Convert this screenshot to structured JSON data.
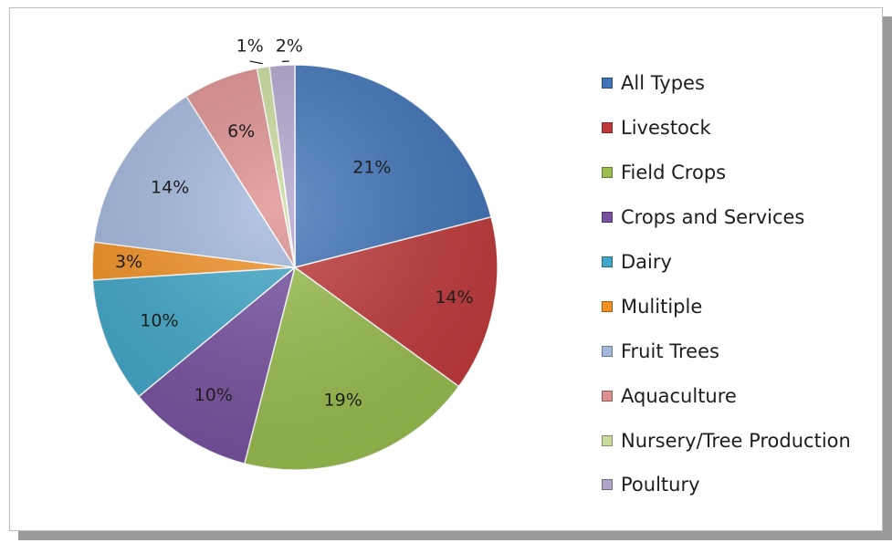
{
  "chart_data": {
    "type": "pie",
    "slices": [
      {
        "label": "All Types",
        "value": 21,
        "display": "21%",
        "color": "#3f73b8"
      },
      {
        "label": "Livestock",
        "value": 14,
        "display": "14%",
        "color": "#c0393a"
      },
      {
        "label": "Field Crops",
        "value": 19,
        "display": "19%",
        "color": "#99be4f"
      },
      {
        "label": "Crops and Services",
        "value": 10,
        "display": "10%",
        "color": "#7852a0"
      },
      {
        "label": "Dairy",
        "value": 10,
        "display": "10%",
        "color": "#40a7c8"
      },
      {
        "label": "Mulitiple",
        "value": 3,
        "display": "3%",
        "color": "#f39125"
      },
      {
        "label": "Fruit Trees",
        "value": 14,
        "display": "14%",
        "color": "#a3b7dd"
      },
      {
        "label": "Aquaculture",
        "value": 6,
        "display": "6%",
        "color": "#dd8e8e"
      },
      {
        "label": "Nursery/Tree Production",
        "value": 1,
        "display": "1%",
        "color": "#c8db9b"
      },
      {
        "label": "Poultury",
        "value": 2,
        "display": "2%",
        "color": "#b1a4cc"
      }
    ],
    "legend_position": "right",
    "title": ""
  }
}
